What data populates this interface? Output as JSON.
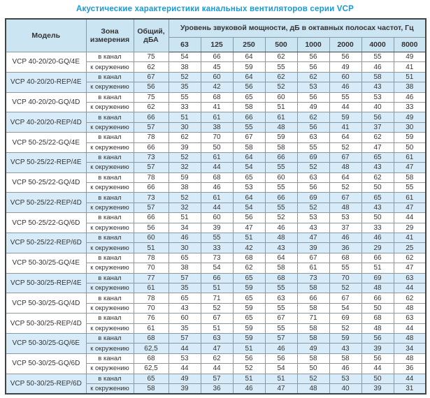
{
  "title": "Акустические характеристики канальных вентиляторов  серии VCP",
  "colors": {
    "title": "#1899d4",
    "header_bg": "#cbe5f3",
    "stripe_bg": "#d7ecf8",
    "border_dark": "#3f4447",
    "border_mid": "#8e979c",
    "border_light": "#bcc3c7",
    "text": "#333333"
  },
  "table": {
    "headers": {
      "model": "Модель",
      "zone": "Зона измерения",
      "total": "Общий, дБА",
      "band_group": "Уровень звуковой мощности, дБ в октавных полосах частот, Гц",
      "frequencies": [
        "63",
        "125",
        "250",
        "500",
        "1000",
        "2000",
        "4000",
        "8000"
      ]
    },
    "zone_labels": [
      "в канал",
      "к окружению"
    ],
    "rows": [
      {
        "model": "VCP 40-20/20-GQ/4E",
        "highlight": false,
        "channel": [
          "75",
          "54",
          "66",
          "64",
          "62",
          "56",
          "56",
          "55",
          "49"
        ],
        "ambient": [
          "62",
          "38",
          "45",
          "59",
          "55",
          "56",
          "49",
          "46",
          "41"
        ]
      },
      {
        "model": "VCP 40-20/20-REP/4E",
        "highlight": true,
        "channel": [
          "67",
          "52",
          "60",
          "64",
          "62",
          "62",
          "60",
          "58",
          "51"
        ],
        "ambient": [
          "56",
          "35",
          "42",
          "56",
          "52",
          "53",
          "46",
          "43",
          "38"
        ]
      },
      {
        "model": "VCP 40-20/20-GQ/4D",
        "highlight": false,
        "channel": [
          "75",
          "55",
          "68",
          "65",
          "60",
          "56",
          "55",
          "53",
          "46"
        ],
        "ambient": [
          "62",
          "33",
          "41",
          "58",
          "51",
          "49",
          "44",
          "40",
          "33"
        ]
      },
      {
        "model": "VCP 40-20/20-REP/4D",
        "highlight": true,
        "channel": [
          "66",
          "51",
          "61",
          "66",
          "61",
          "62",
          "59",
          "56",
          "49"
        ],
        "ambient": [
          "57",
          "30",
          "38",
          "55",
          "48",
          "56",
          "41",
          "37",
          "30"
        ]
      },
      {
        "model": "VCP 50-25/22-GQ/4E",
        "highlight": false,
        "channel": [
          "78",
          "62",
          "70",
          "67",
          "59",
          "63",
          "64",
          "62",
          "59"
        ],
        "ambient": [
          "66",
          "39",
          "50",
          "58",
          "58",
          "55",
          "52",
          "47",
          "50"
        ]
      },
      {
        "model": "VCP 50-25/22-REP/4E",
        "highlight": true,
        "channel": [
          "73",
          "52",
          "61",
          "64",
          "66",
          "69",
          "67",
          "65",
          "61"
        ],
        "ambient": [
          "57",
          "32",
          "44",
          "54",
          "55",
          "52",
          "48",
          "43",
          "47"
        ]
      },
      {
        "model": "VCP 50-25/22-GQ/4D",
        "highlight": false,
        "channel": [
          "78",
          "59",
          "68",
          "65",
          "60",
          "63",
          "64",
          "62",
          "58"
        ],
        "ambient": [
          "66",
          "38",
          "46",
          "53",
          "55",
          "56",
          "52",
          "50",
          "55"
        ]
      },
      {
        "model": "VCP 50-25/22-REP/4D",
        "highlight": true,
        "channel": [
          "73",
          "52",
          "61",
          "64",
          "66",
          "69",
          "67",
          "65",
          "61"
        ],
        "ambient": [
          "57",
          "32",
          "44",
          "54",
          "55",
          "52",
          "48",
          "43",
          "47"
        ]
      },
      {
        "model": "VCP 50-25/22-GQ/6D",
        "highlight": false,
        "channel": [
          "66",
          "51",
          "60",
          "56",
          "52",
          "53",
          "53",
          "50",
          "44"
        ],
        "ambient": [
          "56",
          "34",
          "39",
          "47",
          "46",
          "43",
          "37",
          "33",
          "29"
        ]
      },
      {
        "model": "VCP 50-25/22-REP/6D",
        "highlight": true,
        "channel": [
          "60",
          "46",
          "55",
          "51",
          "48",
          "47",
          "46",
          "46",
          "41"
        ],
        "ambient": [
          "51",
          "30",
          "33",
          "42",
          "43",
          "39",
          "36",
          "29",
          "25"
        ]
      },
      {
        "model": "VCP 50-30/25-GQ/4E",
        "highlight": false,
        "channel": [
          "78",
          "65",
          "73",
          "68",
          "64",
          "67",
          "68",
          "66",
          "62"
        ],
        "ambient": [
          "70",
          "38",
          "54",
          "62",
          "58",
          "61",
          "55",
          "51",
          "47"
        ]
      },
      {
        "model": "VCP 50-30/25-REP/4E",
        "highlight": true,
        "channel": [
          "77",
          "57",
          "66",
          "65",
          "68",
          "73",
          "70",
          "69",
          "63"
        ],
        "ambient": [
          "61",
          "35",
          "51",
          "59",
          "55",
          "58",
          "52",
          "48",
          "44"
        ]
      },
      {
        "model": "VCP 50-30/25-GQ/4D",
        "highlight": false,
        "channel": [
          "78",
          "65",
          "71",
          "65",
          "63",
          "66",
          "67",
          "66",
          "62"
        ],
        "ambient": [
          "70",
          "43",
          "52",
          "59",
          "55",
          "58",
          "54",
          "50",
          "48"
        ]
      },
      {
        "model": "VCP 50-30/25-REP/4D",
        "highlight": false,
        "channel": [
          "76",
          "60",
          "67",
          "65",
          "67",
          "71",
          "69",
          "68",
          "63"
        ],
        "ambient": [
          "61",
          "35",
          "51",
          "59",
          "55",
          "58",
          "52",
          "48",
          "44"
        ]
      },
      {
        "model": "VCP 50-30/25-GQ/6E",
        "highlight": true,
        "channel": [
          "68",
          "57",
          "63",
          "59",
          "57",
          "58",
          "59",
          "56",
          "48"
        ],
        "ambient": [
          "62,5",
          "44",
          "47",
          "51",
          "46",
          "49",
          "43",
          "39",
          "34"
        ]
      },
      {
        "model": "VCP 50-30/25-GQ/6D",
        "highlight": false,
        "channel": [
          "68",
          "53",
          "62",
          "56",
          "56",
          "58",
          "58",
          "56",
          "48"
        ],
        "ambient": [
          "62,5",
          "44",
          "44",
          "52",
          "54",
          "50",
          "46",
          "44",
          "36"
        ]
      },
      {
        "model": "VCP 50-30/25-REP/6D",
        "highlight": true,
        "channel": [
          "65",
          "49",
          "57",
          "51",
          "51",
          "52",
          "53",
          "50",
          "44"
        ],
        "ambient": [
          "58",
          "39",
          "36",
          "46",
          "47",
          "48",
          "40",
          "39",
          "31"
        ]
      }
    ]
  }
}
